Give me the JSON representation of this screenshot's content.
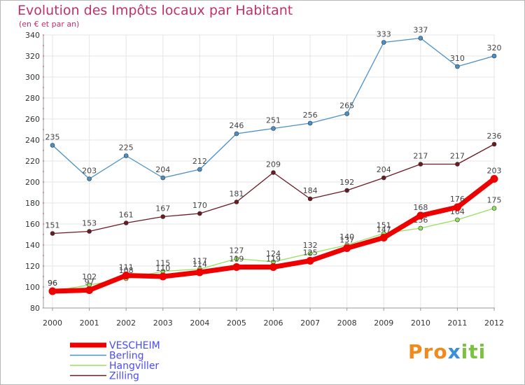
{
  "chart_data": {
    "type": "line",
    "title": "Evolution des Impôts locaux par Habitant",
    "subtitle": "(en € et par an)",
    "xlabel": "",
    "ylabel": "",
    "categories": [
      "2000",
      "2001",
      "2002",
      "2003",
      "2004",
      "2005",
      "2006",
      "2007",
      "2008",
      "2009",
      "2010",
      "2011",
      "2012"
    ],
    "ylim": [
      80,
      340
    ],
    "yticks": [
      80,
      100,
      120,
      140,
      160,
      180,
      200,
      220,
      240,
      260,
      280,
      300,
      320,
      340
    ],
    "grid": true,
    "legend_position": "bottom-left",
    "series": [
      {
        "name": "Berling",
        "color": "#4a90c8",
        "values": [
          235,
          203,
          225,
          204,
          212,
          246,
          251,
          256,
          265,
          333,
          337,
          310,
          320
        ],
        "labels": [
          "235",
          "203",
          "225",
          "204",
          "212",
          "246",
          "251",
          "256",
          "265",
          "333",
          "337",
          "310",
          "320"
        ]
      },
      {
        "name": "Zilling",
        "color": "#6b1a22",
        "values": [
          151,
          153,
          161,
          167,
          170,
          181,
          209,
          184,
          192,
          204,
          217,
          217,
          236
        ],
        "labels": [
          "151",
          "153",
          "161",
          "167",
          "170",
          "181",
          "209",
          "184",
          "192",
          "204",
          "217",
          "217",
          "236"
        ]
      },
      {
        "name": "Hangviller",
        "color": "#96e060",
        "values": [
          96,
          102,
          108,
          115,
          117,
          127,
          124,
          132,
          140,
          151,
          156,
          164,
          175
        ],
        "labels": [
          "96",
          "102",
          "108",
          "115",
          "117",
          "127",
          "124",
          "132",
          "140",
          "151",
          "156",
          "164",
          "175"
        ]
      },
      {
        "name": "VESCHEIM",
        "color": "#ee0000",
        "values": [
          96,
          97,
          111,
          110,
          114,
          119,
          119,
          125,
          137,
          147,
          168,
          176,
          203
        ],
        "labels": [
          "96",
          "97",
          "111",
          "110",
          "114",
          "119",
          "119",
          "125",
          "137",
          "147",
          "168",
          "176",
          "203"
        ]
      }
    ],
    "legend_order": [
      "VESCHEIM",
      "Berling",
      "Hangviller",
      "Zilling"
    ]
  },
  "logo": {
    "letters": [
      "P",
      "r",
      "o",
      "x",
      "i",
      "t",
      "i"
    ],
    "colors": [
      "#f08a1c",
      "#f08a1c",
      "#f08a1c",
      "#3a8fd8",
      "#7cc242",
      "#7cc242",
      "#7cc242"
    ]
  }
}
